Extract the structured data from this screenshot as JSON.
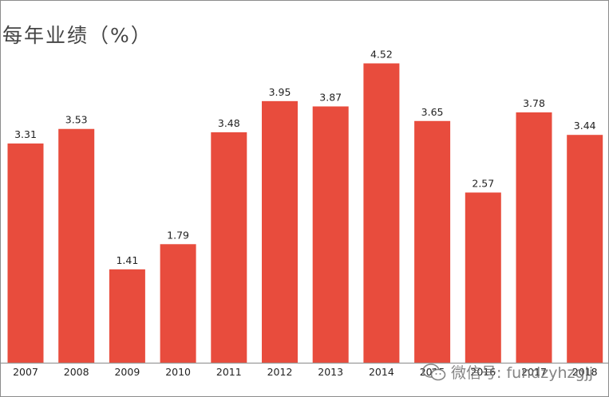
{
  "title": "每年业绩（%）",
  "watermark": {
    "text": "微信号: fundzyhzgjj",
    "icon": "wechat-icon"
  },
  "colors": {
    "bar": "#e84c3d",
    "axis": "#9a9a9a",
    "text": "#222222"
  },
  "chart_data": {
    "type": "bar",
    "title": "每年业绩（%）",
    "categories": [
      "2007",
      "2008",
      "2009",
      "2010",
      "2011",
      "2012",
      "2013",
      "2014",
      "2015",
      "2016",
      "2017",
      "2018"
    ],
    "values": [
      3.31,
      3.53,
      1.41,
      1.79,
      3.48,
      3.95,
      3.87,
      4.52,
      3.65,
      2.57,
      3.78,
      3.44
    ],
    "value_labels": [
      "3.31",
      "3.53",
      "1.41",
      "1.79",
      "3.48",
      "3.95",
      "3.87",
      "4.52",
      "3.65",
      "2.57",
      "3.78",
      "3.44"
    ],
    "ylim": [
      0,
      5.2
    ],
    "grid": false,
    "legend": "none"
  }
}
